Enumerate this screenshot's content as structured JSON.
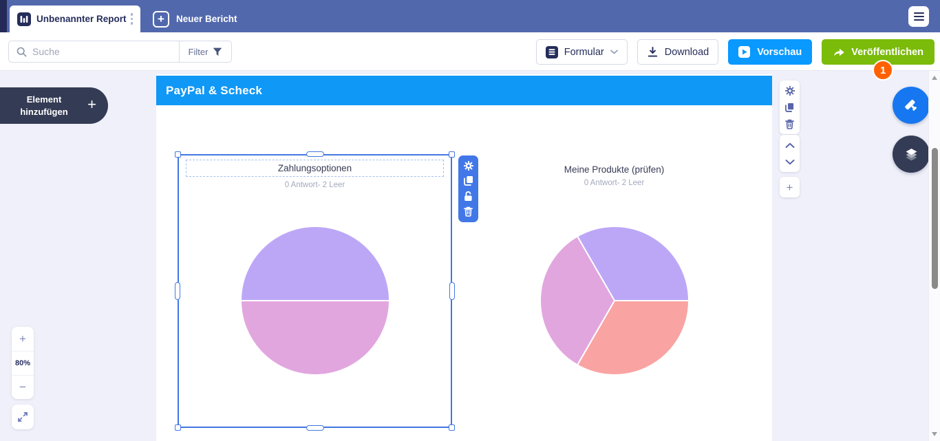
{
  "colors": {
    "topbar_bg": "#5268AD",
    "tab_text": "#252D5B",
    "canvas_bg": "#EFF0F9",
    "page_header_bg": "#1098F6",
    "preview_blue": "#0A99FF",
    "publish_green": "#7BBB0A",
    "badge_orange": "#FF6100",
    "selection_blue": "#4277E0",
    "pie_purple": "#BCA7F7",
    "pie_violet": "#E2A6DF",
    "pie_salmon": "#F9A4A2"
  },
  "topbar": {
    "tab_title": "Unbenannter Report",
    "new_report_label": "Neuer Bericht"
  },
  "toolbar": {
    "search_placeholder": "Suche",
    "filter_label": "Filter",
    "form_button": "Formular",
    "download_button": "Download",
    "preview_button": "Vorschau",
    "publish_button": "Veröffentlichen",
    "publish_badge": "1"
  },
  "sidebar": {
    "add_element_label": "Element hinzufügen"
  },
  "canvas": {
    "page_header": "PayPal & Scheck"
  },
  "zoom_controls": {
    "zoom_in": "+",
    "level": "80%",
    "zoom_out": "−"
  },
  "chart_data": [
    {
      "type": "pie",
      "title": "Zahlungsoptionen",
      "subtitle": "0 Antwort- 2 Leer",
      "start_angle": 180,
      "slices": [
        {
          "color": "#BCA7F7",
          "fraction": 0.5
        },
        {
          "color": "#E2A6DF",
          "fraction": 0.5
        }
      ]
    },
    {
      "type": "pie",
      "title": "Meine Produkte (prüfen)",
      "subtitle": "0 Antwort- 2 Leer",
      "start_angle": 240,
      "slices": [
        {
          "color": "#BCA7F7",
          "fraction": 0.3333
        },
        {
          "color": "#F9A4A2",
          "fraction": 0.3334
        },
        {
          "color": "#E2A6DF",
          "fraction": 0.3333
        }
      ]
    }
  ]
}
